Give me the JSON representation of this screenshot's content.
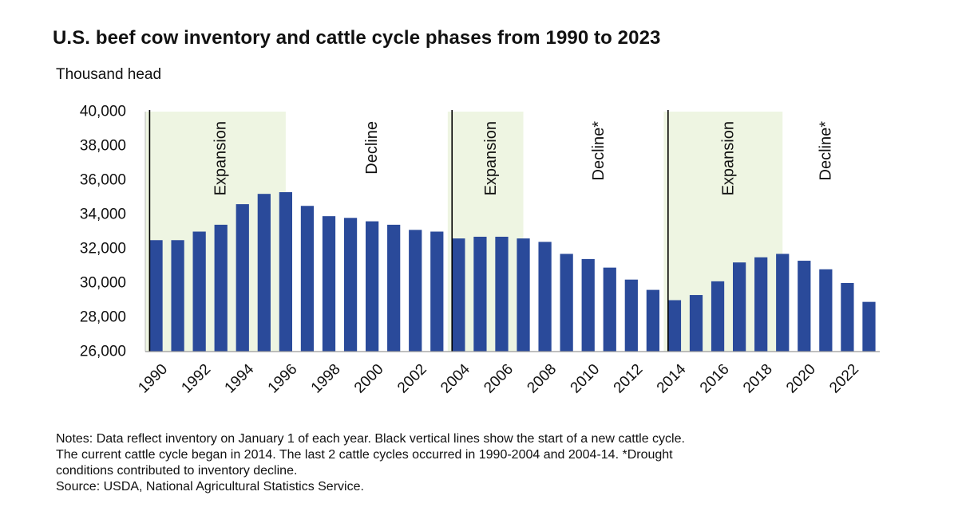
{
  "chart_data": {
    "type": "bar",
    "title": "U.S. beef cow inventory and cattle cycle phases from 1990 to 2023",
    "ylabel": "Thousand head",
    "xlabel": "",
    "ylim": [
      26000,
      40000
    ],
    "yticks": [
      26000,
      28000,
      30000,
      32000,
      34000,
      36000,
      38000,
      40000
    ],
    "ytick_labels": [
      "26,000",
      "28,000",
      "30,000",
      "32,000",
      "34,000",
      "36,000",
      "38,000",
      "40,000"
    ],
    "categories": [
      "1990",
      "1991",
      "1992",
      "1993",
      "1994",
      "1995",
      "1996",
      "1997",
      "1998",
      "1999",
      "2000",
      "2001",
      "2002",
      "2003",
      "2004",
      "2005",
      "2006",
      "2007",
      "2008",
      "2009",
      "2010",
      "2011",
      "2012",
      "2013",
      "2014",
      "2015",
      "2016",
      "2017",
      "2018",
      "2019",
      "2020",
      "2021",
      "2022",
      "2023"
    ],
    "xtick_labels": [
      "1990",
      "1992",
      "1994",
      "1996",
      "1998",
      "2000",
      "2002",
      "2004",
      "2006",
      "2008",
      "2010",
      "2012",
      "2014",
      "2016",
      "2018",
      "2020",
      "2022"
    ],
    "values": [
      32500,
      32500,
      33000,
      33400,
      34600,
      35200,
      35300,
      34500,
      33900,
      33800,
      33600,
      33400,
      33100,
      33000,
      32600,
      32700,
      32700,
      32600,
      32400,
      31700,
      31400,
      30900,
      30200,
      29600,
      29000,
      29300,
      30100,
      31200,
      31500,
      31700,
      31300,
      30800,
      30000,
      28900
    ],
    "bar_color": "#2a4a9a",
    "cycle_start_years": [
      "1990",
      "2004",
      "2014"
    ],
    "phases": [
      {
        "label": "Expansion",
        "start": "1990",
        "end": "1996",
        "shaded": true
      },
      {
        "label": "Decline",
        "start": "1996",
        "end": "2004",
        "shaded": false
      },
      {
        "label": "Expansion",
        "start": "2004",
        "end": "2007",
        "shaded": true
      },
      {
        "label": "Decline*",
        "start": "2007",
        "end": "2014",
        "shaded": false
      },
      {
        "label": "Expansion",
        "start": "2014",
        "end": "2019",
        "shaded": true
      },
      {
        "label": "Decline*",
        "start": "2019",
        "end": "2023",
        "shaded": false
      }
    ],
    "shade_color": "#eef5e2",
    "grid": false,
    "legend": "none"
  },
  "notes": {
    "line1": "Notes: Data reflect inventory on January 1 of each year. Black vertical lines show the start of a new cattle cycle.",
    "line2": "The current cattle cycle began in 2014. The last 2 cattle cycles occurred in 1990-2004 and 2004-14. *Drought",
    "line3": "conditions contributed to inventory decline.",
    "source": "Source: USDA, National Agricultural Statistics Service."
  }
}
